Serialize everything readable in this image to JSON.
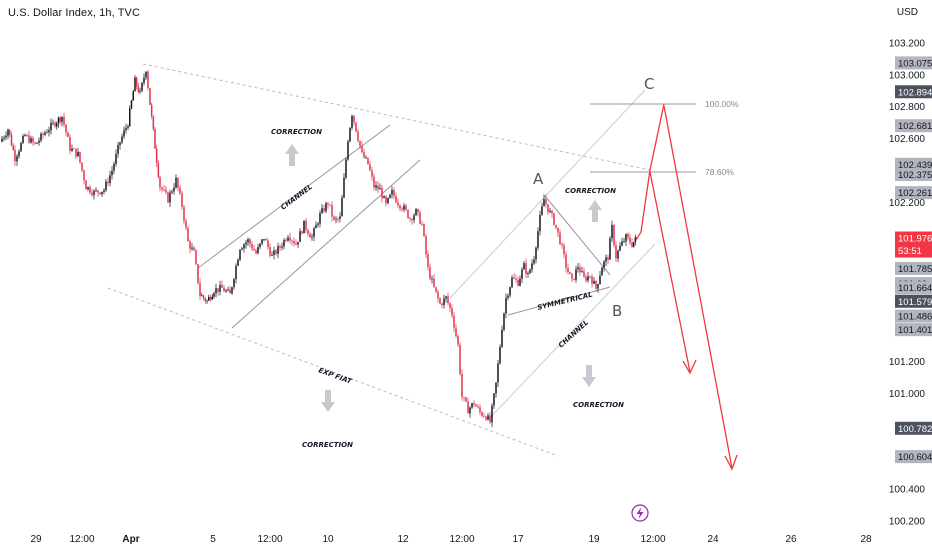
{
  "header": {
    "title": "U.S. Dollar Index, 1h, TVC",
    "currency": "USD"
  },
  "colors": {
    "up": "#131722",
    "down": "#e2314c",
    "badge_gray": "#b2b5be",
    "badge_dark": "#4c525e",
    "badge_current": "#f23645",
    "arrow": "#f23645",
    "channel": "#9598a1"
  },
  "chart_data": {
    "type": "candlestick",
    "symbol": "U.S. Dollar Index",
    "interval": "1h",
    "source": "TVC",
    "currency": "USD",
    "ylim": [
      100.2,
      103.2
    ],
    "y_ticks": [
      103.2,
      103.0,
      102.8,
      102.6,
      102.2,
      101.2,
      101.0,
      100.4,
      100.2
    ],
    "x_ticks": [
      "29",
      "12:00",
      "Apr",
      "5",
      "12:00",
      "10",
      "12",
      "12:00",
      "17",
      "19",
      "12:00",
      "24",
      "26",
      "28"
    ],
    "price_path": [
      [
        0,
        102.58
      ],
      [
        8,
        102.66
      ],
      [
        15,
        102.48
      ],
      [
        25,
        102.62
      ],
      [
        35,
        102.56
      ],
      [
        45,
        102.64
      ],
      [
        55,
        102.7
      ],
      [
        62,
        102.74
      ],
      [
        70,
        102.54
      ],
      [
        78,
        102.5
      ],
      [
        86,
        102.3
      ],
      [
        94,
        102.26
      ],
      [
        104,
        102.28
      ],
      [
        112,
        102.4
      ],
      [
        120,
        102.58
      ],
      [
        128,
        102.7
      ],
      [
        135,
        102.96
      ],
      [
        140,
        102.88
      ],
      [
        146,
        103.04
      ],
      [
        150,
        102.82
      ],
      [
        155,
        102.55
      ],
      [
        160,
        102.3
      ],
      [
        168,
        102.22
      ],
      [
        176,
        102.34
      ],
      [
        182,
        102.18
      ],
      [
        188,
        101.95
      ],
      [
        194,
        101.88
      ],
      [
        200,
        101.62
      ],
      [
        207,
        101.58
      ],
      [
        214,
        101.65
      ],
      [
        222,
        101.66
      ],
      [
        230,
        101.62
      ],
      [
        236,
        101.8
      ],
      [
        240,
        101.92
      ],
      [
        248,
        101.96
      ],
      [
        256,
        101.88
      ],
      [
        264,
        101.98
      ],
      [
        272,
        101.86
      ],
      [
        280,
        101.92
      ],
      [
        288,
        102.0
      ],
      [
        296,
        101.94
      ],
      [
        304,
        102.06
      ],
      [
        312,
        101.98
      ],
      [
        320,
        102.12
      ],
      [
        328,
        102.2
      ],
      [
        334,
        102.08
      ],
      [
        340,
        102.1
      ],
      [
        344,
        102.34
      ],
      [
        348,
        102.6
      ],
      [
        352,
        102.76
      ],
      [
        356,
        102.66
      ],
      [
        362,
        102.5
      ],
      [
        368,
        102.44
      ],
      [
        374,
        102.3
      ],
      [
        380,
        102.28
      ],
      [
        386,
        102.18
      ],
      [
        392,
        102.26
      ],
      [
        398,
        102.2
      ],
      [
        404,
        102.16
      ],
      [
        410,
        102.1
      ],
      [
        416,
        102.14
      ],
      [
        422,
        102.06
      ],
      [
        428,
        101.78
      ],
      [
        434,
        101.66
      ],
      [
        440,
        101.56
      ],
      [
        446,
        101.6
      ],
      [
        452,
        101.5
      ],
      [
        458,
        101.3
      ],
      [
        462,
        100.98
      ],
      [
        468,
        100.9
      ],
      [
        474,
        100.94
      ],
      [
        480,
        100.88
      ],
      [
        486,
        100.86
      ],
      [
        490,
        100.82
      ],
      [
        496,
        101.06
      ],
      [
        502,
        101.42
      ],
      [
        506,
        101.6
      ],
      [
        512,
        101.72
      ],
      [
        518,
        101.7
      ],
      [
        524,
        101.8
      ],
      [
        528,
        101.74
      ],
      [
        534,
        101.86
      ],
      [
        540,
        102.1
      ],
      [
        544,
        102.22
      ],
      [
        548,
        102.16
      ],
      [
        554,
        102.08
      ],
      [
        560,
        101.96
      ],
      [
        566,
        101.8
      ],
      [
        572,
        101.7
      ],
      [
        578,
        101.8
      ],
      [
        584,
        101.72
      ],
      [
        590,
        101.74
      ],
      [
        596,
        101.66
      ],
      [
        602,
        101.8
      ],
      [
        608,
        101.86
      ],
      [
        612,
        102.04
      ],
      [
        616,
        101.86
      ],
      [
        620,
        101.92
      ],
      [
        626,
        101.98
      ],
      [
        632,
        101.94
      ],
      [
        637,
        101.976
      ]
    ],
    "price_labels": [
      {
        "value": 103.075,
        "text": "103.075",
        "style": "gray"
      },
      {
        "value": 102.894,
        "text": "102.894",
        "style": "dark"
      },
      {
        "value": 102.681,
        "text": "102.681",
        "style": "gray"
      },
      {
        "value": 102.439,
        "text": "102.439",
        "style": "gray"
      },
      {
        "value": 102.375,
        "text": "102.375",
        "style": "gray"
      },
      {
        "value": 102.261,
        "text": "102.261",
        "style": "gray"
      },
      {
        "value": 101.976,
        "text": "101.976",
        "sub": "53:51",
        "style": "current"
      },
      {
        "value": 101.785,
        "text": "101.785",
        "style": "gray"
      },
      {
        "value": 101.69,
        "text": "101.69",
        "style": "gray"
      },
      {
        "value": 101.664,
        "text": "101.664",
        "style": "gray"
      },
      {
        "value": 101.579,
        "text": "101.579",
        "style": "dark"
      },
      {
        "value": 101.486,
        "text": "101.486",
        "style": "gray"
      },
      {
        "value": 101.401,
        "text": "101.401",
        "style": "gray"
      },
      {
        "value": 100.782,
        "text": "100.782",
        "style": "dark"
      },
      {
        "value": 100.604,
        "text": "100.604",
        "style": "gray"
      }
    ],
    "fib_levels": [
      {
        "label": "100.00%",
        "value": 102.8
      },
      {
        "label": "78.60%",
        "value": 102.4
      }
    ],
    "annotations": {
      "correction": "CORRECTION",
      "channel": "CHANNEL",
      "symmetrical": "SYMMETRICAL",
      "exp_fiat": "EXP FIAT",
      "wave_a": "A",
      "wave_b": "B",
      "wave_c": "C"
    }
  }
}
